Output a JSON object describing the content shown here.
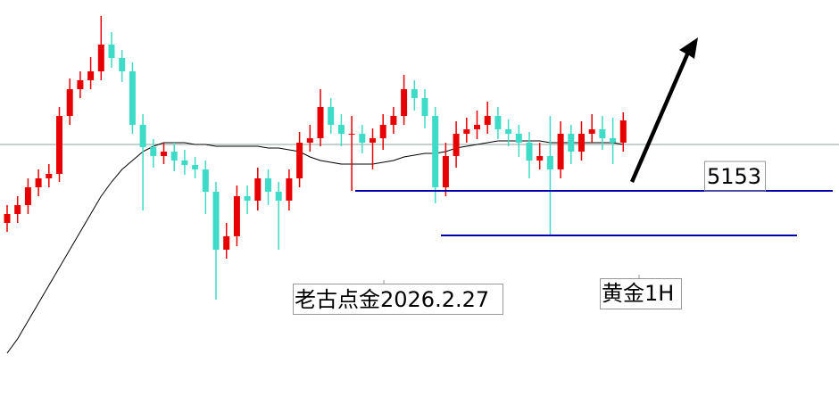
{
  "chart_data": {
    "type": "candlestick",
    "open": [
      5135,
      5140,
      5145,
      5155,
      5160,
      5162.5,
      5195,
      5210,
      5215,
      5220,
      5235,
      5227.5,
      5220,
      5190,
      5177.5,
      5172.5,
      5175,
      5170,
      5167.5,
      5165,
      5152.5,
      5120,
      5127.5,
      5150,
      5147.5,
      5160,
      5152.5,
      5147.5,
      5160,
      5180,
      5182.5,
      5200,
      5190,
      5185,
      5185,
      5180,
      5182.5,
      5190,
      5195,
      5210,
      5205,
      5195,
      5155,
      5172.5,
      5185,
      5187.5,
      5190,
      5195,
      5187.5,
      5185,
      5180,
      5170,
      5172.5,
      5165,
      5185,
      5175,
      5185,
      5187.5,
      5182.5,
      5180
    ],
    "high": [
      5145,
      5150,
      5160,
      5165,
      5168,
      5200,
      5216,
      5220,
      5228,
      5251,
      5242,
      5232,
      5225,
      5196,
      5182,
      5180,
      5180,
      5176,
      5172,
      5170,
      5158,
      5135,
      5156,
      5156,
      5166,
      5165,
      5158,
      5165,
      5186,
      5190,
      5210,
      5205,
      5196,
      5195,
      5190,
      5188,
      5196,
      5200,
      5218,
      5215,
      5210,
      5200,
      5180,
      5192,
      5194,
      5198,
      5203,
      5200,
      5193,
      5190,
      5186,
      5180,
      5195,
      5192,
      5190,
      5192,
      5196,
      5195,
      5194,
      5197
    ],
    "low": [
      5130,
      5135,
      5140,
      5150,
      5155,
      5158,
      5190,
      5205,
      5210,
      5215,
      5222,
      5214,
      5185,
      5142,
      5166,
      5168,
      5164,
      5162,
      5160,
      5140,
      5092,
      5115,
      5122,
      5140,
      5142,
      5145,
      5120,
      5142,
      5155,
      5175,
      5178,
      5185,
      5178,
      5153,
      5174,
      5165,
      5176,
      5185,
      5190,
      5198,
      5188,
      5146,
      5150,
      5166,
      5180,
      5182,
      5185,
      5182,
      5178,
      5172,
      5160,
      5165,
      5128,
      5160,
      5168,
      5170,
      5180,
      5176,
      5168,
      5175
    ],
    "close": [
      5140,
      5145,
      5155,
      5160,
      5162.5,
      5195,
      5210,
      5215,
      5220,
      5235,
      5227.5,
      5220,
      5190,
      5177.5,
      5172.5,
      5175,
      5170,
      5167.5,
      5165,
      5152.5,
      5120,
      5127.5,
      5150,
      5147.5,
      5160,
      5152.5,
      5147.5,
      5160,
      5180,
      5182.5,
      5200,
      5190,
      5185,
      5185,
      5180,
      5182.5,
      5190,
      5195,
      5210,
      5205,
      5195,
      5155,
      5172.5,
      5185,
      5187.5,
      5190,
      5195,
      5187.5,
      5185,
      5180,
      5170,
      5172.5,
      5165,
      5185,
      5175,
      5185,
      5187.5,
      5182.5,
      5180,
      5192.5
    ],
    "up_color": "#e60000",
    "down_color": "#3ddbc8",
    "ma": {
      "color": "#000000",
      "values": [
        5062,
        5070,
        5080,
        5090,
        5100,
        5110,
        5120,
        5130,
        5140,
        5150,
        5158,
        5165,
        5170,
        5175,
        5178,
        5180,
        5180,
        5180,
        5179,
        5179,
        5178,
        5178,
        5178,
        5178,
        5178,
        5177,
        5177,
        5176,
        5175,
        5172,
        5170,
        5169,
        5168,
        5168,
        5168,
        5168,
        5169,
        5170,
        5172,
        5173,
        5174,
        5174,
        5175,
        5177,
        5178,
        5179,
        5180,
        5181,
        5181,
        5181,
        5181,
        5181,
        5180,
        5180,
        5180,
        5180,
        5180,
        5180,
        5180,
        5179
      ]
    },
    "price_line": 5179,
    "levels": [
      {
        "value": 5153,
        "label": "5153"
      },
      5128
    ],
    "level_color": "#0000aa",
    "ylim": [
      5029,
      5260
    ],
    "annotations": [
      "老古点金2026.2.27",
      "黄金1H"
    ]
  }
}
